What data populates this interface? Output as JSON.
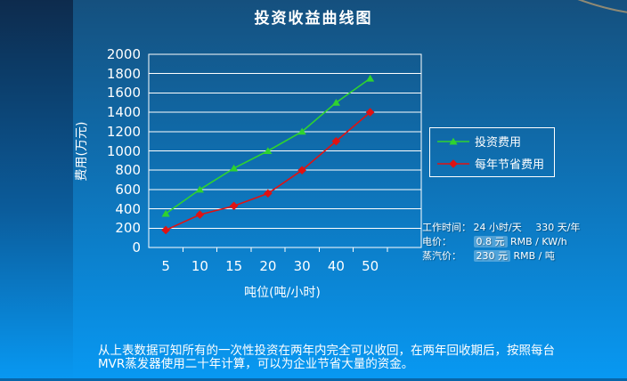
{
  "slide": {
    "title": "投资收益曲线图",
    "footer_text": "从上表数据可知所有的一次性投资在两年内完全可以收回，在两年回收期后，按照每台MVR蒸发器使用二十年计算，可以为企业节省大量的资金。"
  },
  "colors": {
    "background_top": "#15507E",
    "background_bottom": "#0899F3",
    "left_bar_top": "#0D2B4D",
    "grid_and_text": "#FFFFFF",
    "investment_series": "#2FD32F",
    "savings_series": "#E01212",
    "corner_arc": "#A59372"
  },
  "chart_data": {
    "type": "line",
    "title": "投资收益曲线图",
    "categories": [
      "5",
      "10",
      "15",
      "20",
      "30",
      "40",
      "50"
    ],
    "series": [
      {
        "name": "投资费用",
        "color": "#2FD32F",
        "marker": "triangle",
        "values": [
          350,
          600,
          820,
          1000,
          1200,
          1500,
          1750
        ]
      },
      {
        "name": "每年节省费用",
        "color": "#E01212",
        "marker": "diamond",
        "values": [
          180,
          340,
          430,
          560,
          800,
          1100,
          1400
        ]
      }
    ],
    "xlabel": "吨位(吨/小时)",
    "ylabel": "费用(万元)",
    "ylim": [
      0,
      2000
    ],
    "ytick_step": 200,
    "grid": true,
    "legend_position": "right"
  },
  "info_panel": {
    "work_label": "工作时间：",
    "work_hours": "24 小时/天",
    "work_days": "330 天/年",
    "electricity_label": "电价：",
    "electricity_value": "0.8 元",
    "electricity_unit": "RMB / KW/h",
    "steam_label": "蒸汽价：",
    "steam_value": "230 元",
    "steam_unit": "RMB / 吨"
  }
}
